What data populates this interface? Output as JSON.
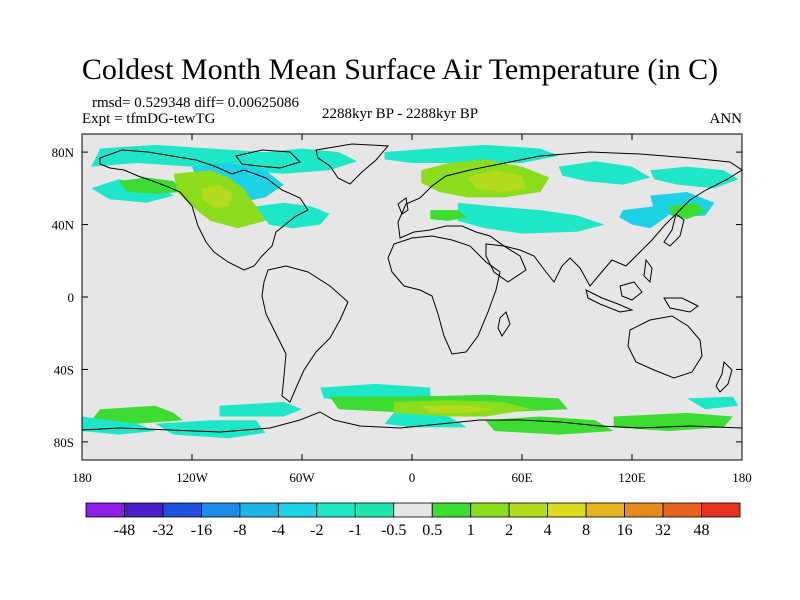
{
  "title": "Coldest Month Mean Surface Air Temperature (in C)",
  "stats": {
    "rmsd_line": "rmsd= 0.529348 diff= 0.00625086",
    "expt_line": "Expt = tfmDG-tewTG"
  },
  "period": "2288kyr BP - 2288kyr BP",
  "season": "ANN",
  "map": {
    "projection": "cylindrical-equidistant",
    "lon_range": [
      -180,
      180
    ],
    "lat_range": [
      -90,
      90
    ],
    "background_color": "#e6e6e6",
    "coast_color": "#000000"
  },
  "axes": {
    "x_ticks": [
      {
        "value": -180,
        "label": "180"
      },
      {
        "value": -120,
        "label": "120W"
      },
      {
        "value": -60,
        "label": "60W"
      },
      {
        "value": 0,
        "label": "0"
      },
      {
        "value": 60,
        "label": "60E"
      },
      {
        "value": 120,
        "label": "120E"
      },
      {
        "value": 180,
        "label": "180"
      }
    ],
    "y_ticks": [
      {
        "value": 80,
        "label": "80N"
      },
      {
        "value": 40,
        "label": "40N"
      },
      {
        "value": 0,
        "label": "0"
      },
      {
        "value": -40,
        "label": "40S"
      },
      {
        "value": -80,
        "label": "80S"
      }
    ]
  },
  "colorbar": {
    "colors": [
      "#8c1ce6",
      "#4b1ec8",
      "#1e50dc",
      "#1e8ce6",
      "#1eb4e6",
      "#1ed2e6",
      "#1ee6c8",
      "#1ee6aa",
      "#e6e6e6",
      "#3cdc32",
      "#8cdc1e",
      "#b4dc1e",
      "#dcdc1e",
      "#e6b41e",
      "#e68c1e",
      "#e6641e",
      "#e6321e"
    ],
    "labels": [
      "-48",
      "-32",
      "-16",
      "-8",
      "-4",
      "-2",
      "-1",
      "-0.5",
      "0.5",
      "1",
      "2",
      "4",
      "8",
      "16",
      "32",
      "48"
    ]
  },
  "anomaly_regions": [
    {
      "level": "-1",
      "color": "#1ee6c8",
      "points": [
        [
          -170,
          82
        ],
        [
          -140,
          84
        ],
        [
          -110,
          82
        ],
        [
          -80,
          80
        ],
        [
          -60,
          82
        ],
        [
          -40,
          80
        ],
        [
          -30,
          75
        ],
        [
          -45,
          70
        ],
        [
          -70,
          68
        ],
        [
          -95,
          70
        ],
        [
          -120,
          72
        ],
        [
          -150,
          74
        ],
        [
          -175,
          72
        ]
      ]
    },
    {
      "level": "-2",
      "color": "#1ed2e6",
      "points": [
        [
          -120,
          72
        ],
        [
          -100,
          74
        ],
        [
          -80,
          70
        ],
        [
          -70,
          62
        ],
        [
          -80,
          55
        ],
        [
          -95,
          52
        ],
        [
          -110,
          58
        ],
        [
          -118,
          66
        ]
      ]
    },
    {
      "level": "-1",
      "color": "#1ee6c8",
      "points": [
        [
          -175,
          60
        ],
        [
          -160,
          65
        ],
        [
          -140,
          62
        ],
        [
          -130,
          56
        ],
        [
          -145,
          52
        ],
        [
          -165,
          54
        ]
      ]
    },
    {
      "level": "1",
      "color": "#3cdc32",
      "points": [
        [
          -160,
          64
        ],
        [
          -145,
          66
        ],
        [
          -130,
          64
        ],
        [
          -125,
          58
        ],
        [
          -140,
          57
        ],
        [
          -155,
          58
        ]
      ]
    },
    {
      "level": "2",
      "color": "#8cdc1e",
      "points": [
        [
          -130,
          68
        ],
        [
          -110,
          70
        ],
        [
          -100,
          66
        ],
        [
          -92,
          60
        ],
        [
          -85,
          50
        ],
        [
          -75,
          48
        ],
        [
          -80,
          42
        ],
        [
          -95,
          38
        ],
        [
          -110,
          42
        ],
        [
          -120,
          50
        ],
        [
          -128,
          58
        ]
      ]
    },
    {
      "level": "4",
      "color": "#b4dc1e",
      "points": [
        [
          -115,
          60
        ],
        [
          -105,
          62
        ],
        [
          -98,
          57
        ],
        [
          -100,
          50
        ],
        [
          -108,
          49
        ],
        [
          -114,
          54
        ]
      ]
    },
    {
      "level": "-1",
      "color": "#1ee6c8",
      "points": [
        [
          -85,
          50
        ],
        [
          -70,
          52
        ],
        [
          -55,
          50
        ],
        [
          -45,
          46
        ],
        [
          -50,
          40
        ],
        [
          -65,
          38
        ],
        [
          -78,
          40
        ]
      ]
    },
    {
      "level": "-1",
      "color": "#1ee6c8",
      "points": [
        [
          -15,
          80
        ],
        [
          10,
          82
        ],
        [
          40,
          84
        ],
        [
          70,
          82
        ],
        [
          80,
          78
        ],
        [
          60,
          74
        ],
        [
          30,
          74
        ],
        [
          0,
          74
        ],
        [
          -15,
          76
        ]
      ]
    },
    {
      "level": "2",
      "color": "#8cdc1e",
      "points": [
        [
          5,
          70
        ],
        [
          20,
          74
        ],
        [
          40,
          76
        ],
        [
          60,
          72
        ],
        [
          75,
          66
        ],
        [
          70,
          58
        ],
        [
          50,
          55
        ],
        [
          30,
          55
        ],
        [
          15,
          58
        ],
        [
          5,
          63
        ]
      ]
    },
    {
      "level": "4",
      "color": "#b4dc1e",
      "points": [
        [
          30,
          66
        ],
        [
          45,
          70
        ],
        [
          60,
          67
        ],
        [
          62,
          60
        ],
        [
          48,
          58
        ],
        [
          35,
          60
        ]
      ]
    },
    {
      "level": "-1",
      "color": "#1ee6c8",
      "points": [
        [
          25,
          52
        ],
        [
          45,
          50
        ],
        [
          70,
          48
        ],
        [
          90,
          45
        ],
        [
          105,
          40
        ],
        [
          90,
          36
        ],
        [
          60,
          35
        ],
        [
          40,
          38
        ],
        [
          25,
          42
        ]
      ]
    },
    {
      "level": "1",
      "color": "#3cdc32",
      "points": [
        [
          10,
          48
        ],
        [
          25,
          48
        ],
        [
          30,
          44
        ],
        [
          20,
          42
        ],
        [
          10,
          43
        ]
      ]
    },
    {
      "level": "-1",
      "color": "#1ee6c8",
      "points": [
        [
          80,
          72
        ],
        [
          100,
          75
        ],
        [
          120,
          72
        ],
        [
          130,
          66
        ],
        [
          115,
          62
        ],
        [
          95,
          64
        ],
        [
          82,
          67
        ]
      ]
    },
    {
      "level": "-1",
      "color": "#1ee6c8",
      "points": [
        [
          130,
          70
        ],
        [
          150,
          72
        ],
        [
          170,
          70
        ],
        [
          178,
          65
        ],
        [
          165,
          60
        ],
        [
          145,
          62
        ],
        [
          132,
          65
        ]
      ]
    },
    {
      "level": "-2",
      "color": "#1ed2e6",
      "points": [
        [
          130,
          56
        ],
        [
          150,
          58
        ],
        [
          165,
          52
        ],
        [
          160,
          45
        ],
        [
          145,
          44
        ],
        [
          132,
          48
        ]
      ]
    },
    {
      "level": "-2",
      "color": "#1ed2e6",
      "points": [
        [
          115,
          48
        ],
        [
          132,
          50
        ],
        [
          140,
          45
        ],
        [
          130,
          38
        ],
        [
          120,
          40
        ],
        [
          113,
          44
        ]
      ]
    },
    {
      "level": "1",
      "color": "#3cdc32",
      "points": [
        [
          140,
          50
        ],
        [
          155,
          52
        ],
        [
          160,
          47
        ],
        [
          150,
          43
        ],
        [
          142,
          45
        ]
      ]
    },
    {
      "level": "-1",
      "color": "#1ee6c8",
      "points": [
        [
          -105,
          -60
        ],
        [
          -70,
          -58
        ],
        [
          -60,
          -62
        ],
        [
          -70,
          -66
        ],
        [
          -105,
          -66
        ]
      ]
    },
    {
      "level": "1",
      "color": "#3cdc32",
      "points": [
        [
          -170,
          -62
        ],
        [
          -140,
          -60
        ],
        [
          -130,
          -64
        ],
        [
          -125,
          -68
        ],
        [
          -150,
          -70
        ],
        [
          -175,
          -68
        ]
      ]
    },
    {
      "level": "-1",
      "color": "#1ee6c8",
      "points": [
        [
          -180,
          -66
        ],
        [
          -150,
          -70
        ],
        [
          -140,
          -74
        ],
        [
          -160,
          -76
        ],
        [
          -180,
          -74
        ]
      ]
    },
    {
      "level": "-1",
      "color": "#1ee6c8",
      "points": [
        [
          -140,
          -70
        ],
        [
          -110,
          -68
        ],
        [
          -85,
          -68
        ],
        [
          -80,
          -75
        ],
        [
          -100,
          -78
        ],
        [
          -130,
          -76
        ]
      ]
    },
    {
      "level": "-1",
      "color": "#1ee6c8",
      "points": [
        [
          -50,
          -50
        ],
        [
          -20,
          -48
        ],
        [
          10,
          -50
        ],
        [
          10,
          -56
        ],
        [
          -20,
          -58
        ],
        [
          -48,
          -56
        ]
      ]
    },
    {
      "level": "1",
      "color": "#3cdc32",
      "points": [
        [
          -45,
          -55
        ],
        [
          0,
          -55
        ],
        [
          40,
          -54
        ],
        [
          80,
          -56
        ],
        [
          85,
          -62
        ],
        [
          40,
          -64
        ],
        [
          0,
          -64
        ],
        [
          -40,
          -62
        ]
      ]
    },
    {
      "level": "2",
      "color": "#8cdc1e",
      "points": [
        [
          -10,
          -58
        ],
        [
          20,
          -57
        ],
        [
          50,
          -58
        ],
        [
          65,
          -62
        ],
        [
          40,
          -66
        ],
        [
          10,
          -66
        ],
        [
          -10,
          -64
        ]
      ]
    },
    {
      "level": "4",
      "color": "#b4dc1e",
      "points": [
        [
          5,
          -60
        ],
        [
          30,
          -60
        ],
        [
          45,
          -62
        ],
        [
          30,
          -64
        ],
        [
          10,
          -64
        ]
      ]
    },
    {
      "level": "1",
      "color": "#3cdc32",
      "points": [
        [
          40,
          -68
        ],
        [
          70,
          -66
        ],
        [
          100,
          -68
        ],
        [
          110,
          -74
        ],
        [
          80,
          -76
        ],
        [
          45,
          -74
        ]
      ]
    },
    {
      "level": "-1",
      "color": "#1ee6c8",
      "points": [
        [
          -10,
          -64
        ],
        [
          20,
          -66
        ],
        [
          30,
          -72
        ],
        [
          0,
          -72
        ],
        [
          -15,
          -70
        ]
      ]
    },
    {
      "level": "1",
      "color": "#3cdc32",
      "points": [
        [
          110,
          -66
        ],
        [
          150,
          -64
        ],
        [
          175,
          -66
        ],
        [
          170,
          -72
        ],
        [
          140,
          -74
        ],
        [
          110,
          -72
        ]
      ]
    },
    {
      "level": "-1",
      "color": "#1ee6c8",
      "points": [
        [
          150,
          -56
        ],
        [
          175,
          -55
        ],
        [
          178,
          -60
        ],
        [
          160,
          -62
        ]
      ]
    }
  ]
}
